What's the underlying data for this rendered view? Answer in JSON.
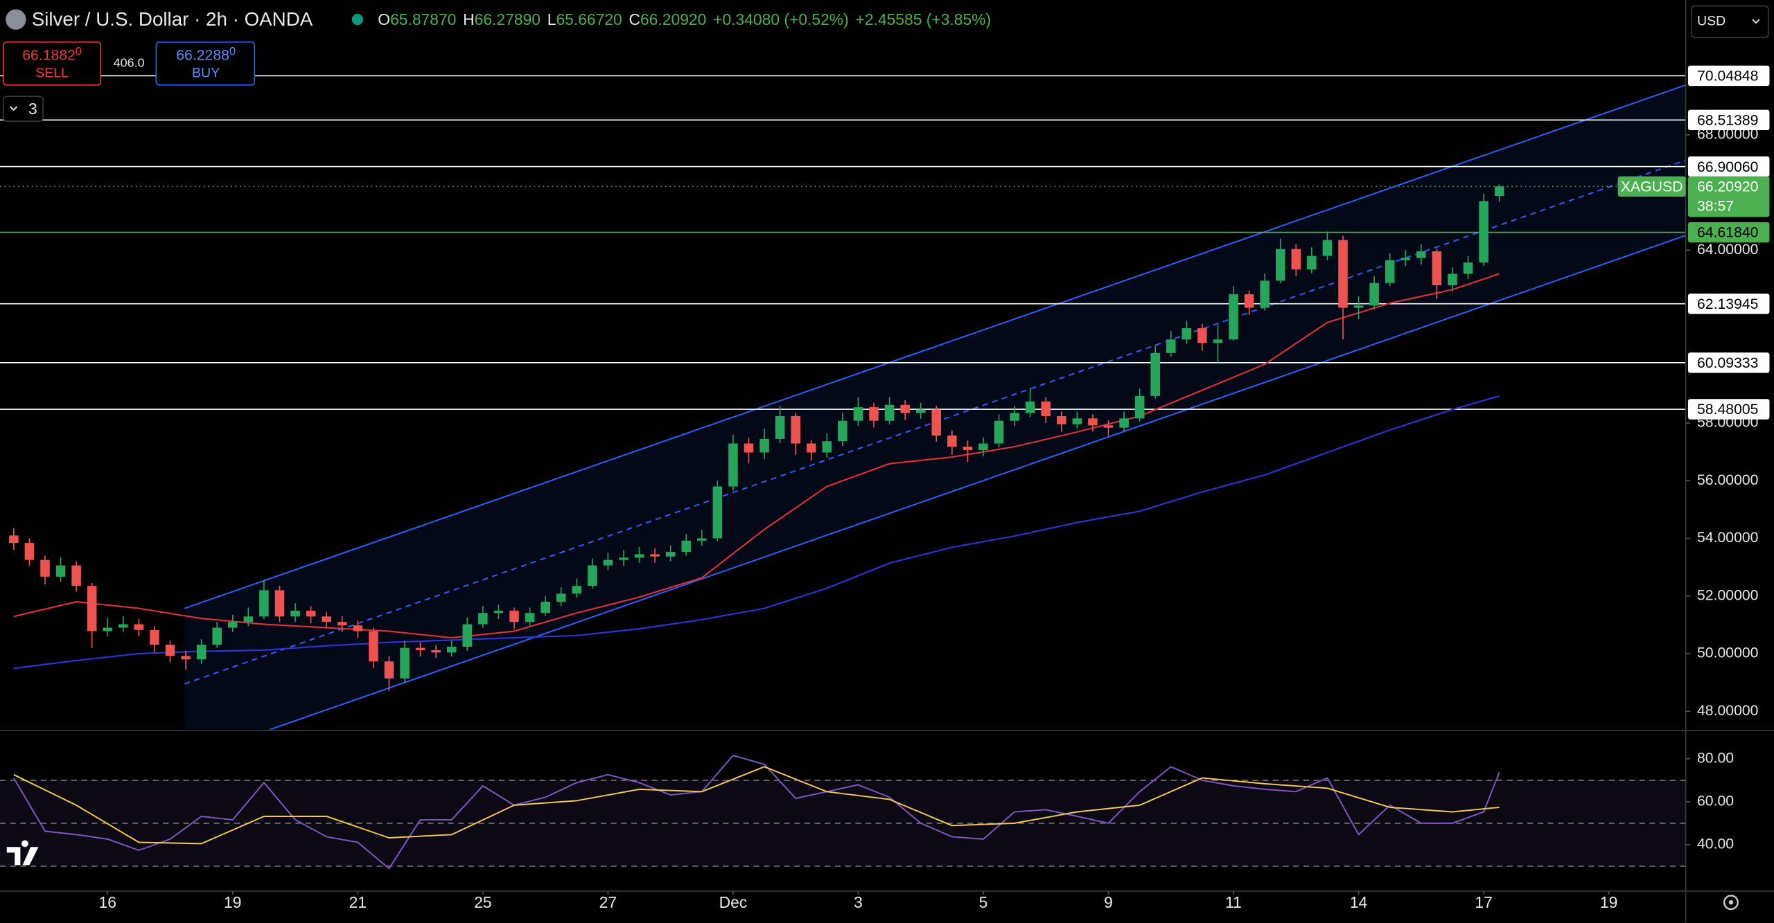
{
  "header": {
    "symbol": "Silver / U.S. Dollar · 2h · OANDA",
    "ohlc": [
      {
        "key": "O",
        "value": "65.87870"
      },
      {
        "key": "H",
        "value": "66.27890"
      },
      {
        "key": "L",
        "value": "65.66720"
      },
      {
        "key": "C",
        "value": "66.20920"
      }
    ],
    "change": "+0.34080 (+0.52%)",
    "change_total": "+2.45585 (+3.85%)",
    "sell": {
      "price": "66.1882",
      "pip": "0",
      "label": "SELL"
    },
    "spread": "406.0",
    "buy": {
      "price": "66.2288",
      "pip": "0",
      "label": "BUY"
    },
    "indicators_count": "3",
    "currency": "USD"
  },
  "chart_data": {
    "type": "candlestick",
    "xlim": [
      -1.72,
      25.23
    ],
    "ylim": [
      47.37,
      72.67
    ],
    "grid": false,
    "xticks": [
      {
        "value": 0,
        "label": "16"
      },
      {
        "value": 2,
        "label": "19"
      },
      {
        "value": 4,
        "label": "21"
      },
      {
        "value": 6,
        "label": "25"
      },
      {
        "value": 8,
        "label": "27"
      },
      {
        "value": 10,
        "label": "Dec"
      },
      {
        "value": 12,
        "label": "3"
      },
      {
        "value": 14,
        "label": "5"
      },
      {
        "value": 16,
        "label": "9"
      },
      {
        "value": 18,
        "label": "11"
      },
      {
        "value": 20,
        "label": "14"
      },
      {
        "value": 22,
        "label": "17"
      },
      {
        "value": 24,
        "label": "19"
      }
    ],
    "yticks": [
      {
        "value": 48,
        "label": "48.00000"
      },
      {
        "value": 50,
        "label": "50.00000"
      },
      {
        "value": 52,
        "label": "52.00000"
      },
      {
        "value": 54,
        "label": "54.00000"
      },
      {
        "value": 56,
        "label": "56.00000"
      },
      {
        "value": 58,
        "label": "58.00000"
      },
      {
        "value": 64,
        "label": "64.00000"
      },
      {
        "value": 68,
        "label": "68.00000"
      }
    ],
    "candles": {
      "up_color": "#26a65b",
      "down_color": "#ef5350",
      "x": [
        -1.5,
        -1.25,
        -1,
        -0.75,
        -0.5,
        -0.25,
        0,
        0.25,
        0.5,
        0.75,
        1,
        1.25,
        1.5,
        1.75,
        2,
        2.25,
        2.5,
        2.75,
        3,
        3.25,
        3.5,
        3.75,
        4,
        4.25,
        4.5,
        4.75,
        5,
        5.25,
        5.5,
        5.75,
        6,
        6.25,
        6.5,
        6.75,
        7,
        7.25,
        7.5,
        7.75,
        8,
        8.25,
        8.5,
        8.75,
        9,
        9.25,
        9.5,
        9.75,
        10,
        10.25,
        10.5,
        10.75,
        11,
        11.25,
        11.5,
        11.75,
        12,
        12.25,
        12.5,
        12.75,
        13,
        13.25,
        13.5,
        13.75,
        14,
        14.25,
        14.5,
        14.75,
        15,
        15.25,
        15.5,
        15.75,
        16,
        16.25,
        16.5,
        16.75,
        17,
        17.25,
        17.5,
        17.75,
        18,
        18.25,
        18.5,
        18.75,
        19,
        19.25,
        19.5,
        19.75,
        20,
        20.25,
        20.5,
        20.75,
        21,
        21.25,
        21.5,
        21.75,
        22,
        22.25
      ],
      "open": [
        54.1,
        53.84,
        53.25,
        52.67,
        53.06,
        52.35,
        50.78,
        50.9,
        51.02,
        50.82,
        50.31,
        49.92,
        49.8,
        50.31,
        50.9,
        51.1,
        51.29,
        52.2,
        51.29,
        51.49,
        51.29,
        51.1,
        50.98,
        50.78,
        49.73,
        49.14,
        50.2,
        50.12,
        50.04,
        50.24,
        51.02,
        51.41,
        51.49,
        51.1,
        51.41,
        51.8,
        52.08,
        52.35,
        53.06,
        53.25,
        53.33,
        53.45,
        53.37,
        53.53,
        53.92,
        54,
        55.8,
        57.29,
        56.98,
        57.45,
        58.24,
        57.29,
        56.98,
        57.37,
        58.08,
        58.55,
        58.08,
        58.63,
        58.35,
        58.47,
        57.57,
        57.18,
        57.06,
        57.29,
        58.08,
        58.35,
        58.75,
        58.24,
        57.96,
        58.16,
        57.92,
        57.84,
        58.16,
        58.94,
        60.43,
        60.9,
        61.29,
        60.78,
        60.9,
        62.47,
        62,
        62.94,
        64.04,
        63.33,
        63.8,
        64.35,
        62,
        62.08,
        62.86,
        63.65,
        63.73,
        63.96,
        62.78,
        63.18,
        63.57,
        65.8787
      ],
      "high": [
        54.35,
        54,
        53.4,
        53.35,
        53.2,
        52.45,
        51.25,
        51.3,
        51.2,
        50.95,
        50.45,
        50.1,
        50.5,
        51.1,
        51.35,
        51.6,
        52.55,
        52.35,
        51.75,
        51.65,
        51.45,
        51.3,
        51.15,
        50.9,
        49.9,
        50.45,
        50.4,
        50.3,
        50.45,
        51.25,
        51.65,
        51.7,
        51.6,
        51.6,
        52,
        52.3,
        52.6,
        53.3,
        53.5,
        53.6,
        53.7,
        53.65,
        53.75,
        54.15,
        54.3,
        56,
        57.6,
        57.5,
        57.8,
        58.6,
        58.35,
        57.4,
        57.65,
        58.35,
        58.9,
        58.7,
        58.9,
        58.8,
        58.7,
        58.6,
        57.75,
        57.4,
        57.5,
        58.3,
        58.6,
        59.2,
        58.9,
        58.4,
        58.4,
        58.3,
        58.1,
        58.4,
        59.2,
        60.7,
        61.2,
        61.55,
        61.45,
        61.4,
        62.75,
        62.6,
        63.2,
        64.4,
        64.2,
        64.1,
        64.65,
        64.5,
        62.4,
        63.1,
        63.9,
        64,
        64.2,
        64.05,
        63.4,
        63.8,
        65.95,
        66.2789
      ],
      "low": [
        53.6,
        53.05,
        52.4,
        52.5,
        52.15,
        50.2,
        50.6,
        50.75,
        50.6,
        50.05,
        49.7,
        49.45,
        49.65,
        50.2,
        50.75,
        50.95,
        51.2,
        51.1,
        51.1,
        51.05,
        50.9,
        50.75,
        50.55,
        49.5,
        48.7,
        49,
        49.9,
        49.85,
        49.9,
        50.1,
        50.9,
        51.2,
        50.85,
        50.95,
        51.3,
        51.65,
        51.95,
        52.25,
        52.9,
        53.05,
        53.15,
        53.15,
        53.2,
        53.4,
        53.75,
        53.9,
        55.65,
        56.6,
        56.75,
        57.3,
        56.9,
        56.7,
        56.8,
        57.2,
        57.9,
        57.85,
        57.95,
        58.1,
        58.15,
        57.35,
        56.9,
        56.65,
        56.85,
        57.15,
        57.9,
        58.2,
        58,
        57.7,
        57.8,
        57.7,
        57.55,
        57.7,
        58.05,
        58.85,
        60.3,
        60.75,
        60.5,
        60.1,
        60.85,
        61.75,
        61.9,
        62.85,
        63.1,
        63.2,
        63.65,
        60.9,
        61.6,
        61.95,
        62.75,
        63.45,
        63.5,
        62.3,
        62.55,
        63,
        63.45,
        65.6672
      ],
      "close": [
        53.84,
        53.25,
        52.67,
        53.06,
        52.35,
        50.78,
        50.9,
        51.02,
        50.82,
        50.31,
        49.92,
        49.8,
        50.31,
        50.9,
        51.1,
        51.29,
        52.2,
        51.29,
        51.49,
        51.29,
        51.1,
        50.98,
        50.78,
        49.73,
        49.14,
        50.2,
        50.12,
        50.04,
        50.24,
        51.02,
        51.41,
        51.49,
        51.1,
        51.41,
        51.8,
        52.08,
        52.35,
        53.06,
        53.25,
        53.33,
        53.45,
        53.37,
        53.53,
        53.92,
        54,
        55.8,
        57.29,
        56.98,
        57.45,
        58.24,
        57.29,
        56.98,
        57.37,
        58.08,
        58.55,
        58.08,
        58.63,
        58.35,
        58.47,
        57.57,
        57.18,
        57.06,
        57.29,
        58.08,
        58.35,
        58.75,
        58.24,
        57.96,
        58.16,
        57.92,
        57.84,
        58.16,
        58.94,
        60.43,
        60.9,
        61.29,
        60.78,
        60.9,
        62.47,
        62,
        62.94,
        64.04,
        63.33,
        63.8,
        64.35,
        62,
        62.08,
        62.86,
        63.65,
        63.73,
        63.96,
        62.78,
        63.18,
        63.57,
        65.7,
        66.2092
      ]
    },
    "series": [
      {
        "color": "#e0303a",
        "x": [
          -1.5,
          -0.5,
          0.5,
          1.5,
          2.5,
          3.5,
          4.5,
          5.5,
          6.5,
          7.5,
          8.5,
          9.5,
          10.5,
          11.5,
          12.5,
          13.5,
          14.5,
          15.5,
          16.5,
          17.5,
          18.5,
          19.5,
          20.5,
          21.5,
          22.25
        ],
        "values": [
          51.29,
          51.8,
          51.57,
          51.22,
          51.02,
          50.9,
          50.78,
          50.55,
          50.78,
          51.41,
          51.96,
          52.63,
          54.31,
          55.8,
          56.59,
          56.82,
          57.18,
          57.69,
          58.24,
          59.14,
          60.04,
          61.49,
          62.16,
          62.63,
          63.18
        ]
      },
      {
        "color": "#2b35d8",
        "x": [
          -1.5,
          -0.5,
          0.5,
          1.5,
          2.5,
          3.5,
          4.5,
          5.5,
          6.5,
          7.5,
          8.5,
          9.5,
          10.5,
          11.5,
          12.5,
          13.5,
          14.5,
          15.5,
          16.5,
          17.5,
          18.5,
          19.5,
          20.5,
          21.5,
          22.25
        ],
        "values": [
          49.49,
          49.76,
          50,
          50.08,
          50.12,
          50.27,
          50.39,
          50.47,
          50.55,
          50.63,
          50.86,
          51.18,
          51.57,
          52.27,
          53.14,
          53.69,
          54.08,
          54.55,
          54.94,
          55.61,
          56.2,
          56.98,
          57.76,
          58.47,
          58.94
        ]
      }
    ],
    "channel": {
      "color": "#2962ff",
      "x": [
        1.23,
        25.23
      ],
      "top": [
        51.57,
        69.73
      ],
      "middle": [
        48.95,
        67.12
      ],
      "bottom": [
        46.33,
        64.51
      ]
    },
    "levels": [
      {
        "value": 70.04848,
        "label": "70.04848",
        "color": "#ffffff"
      },
      {
        "value": 68.51389,
        "label": "68.51389",
        "color": "#ffffff"
      },
      {
        "value": 66.9006,
        "label": "66.90060",
        "color": "#ffffff"
      },
      {
        "value": 64.6184,
        "label": "64.61840",
        "color": "#4caf50"
      },
      {
        "value": 62.13945,
        "label": "62.13945",
        "color": "#ffffff"
      },
      {
        "value": 60.09333,
        "label": "60.09333",
        "color": "#ffffff"
      },
      {
        "value": 58.48005,
        "label": "58.48005",
        "color": "#ffffff"
      }
    ],
    "last": {
      "value": 66.2092,
      "label": "66.20920",
      "symbol": "XAGUSD",
      "countdown": "38:57",
      "color": "#4caf50"
    },
    "rsi": {
      "ylim": [
        18.4,
        92.1
      ],
      "yticks": [
        {
          "value": 80,
          "label": "80.00"
        },
        {
          "value": 60,
          "label": "60.00"
        },
        {
          "value": 40,
          "label": "40.00"
        }
      ],
      "bands": [
        70,
        50,
        30
      ],
      "series": [
        {
          "color": "#7e57c2",
          "x": [
            -1.5,
            -1,
            -0.5,
            0,
            0.5,
            1,
            1.5,
            2,
            2.5,
            3,
            3.5,
            4,
            4.5,
            5,
            5.5,
            6,
            6.5,
            7,
            7.5,
            8,
            8.5,
            9,
            9.5,
            10,
            10.5,
            11,
            11.5,
            12,
            12.5,
            13,
            13.5,
            14,
            14.5,
            15,
            15.5,
            16,
            16.5,
            17,
            17.5,
            18,
            18.5,
            19,
            19.5,
            20,
            20.5,
            21,
            21.5,
            22,
            22.25
          ],
          "values": [
            71.1,
            46.3,
            44.7,
            42.6,
            37.4,
            42.6,
            53.2,
            51.6,
            68.9,
            51.6,
            43.7,
            41.1,
            28.9,
            51.6,
            51.6,
            67.4,
            58.4,
            62.1,
            68.9,
            72.6,
            68.9,
            63.2,
            64.7,
            81.6,
            77.4,
            61.6,
            64.7,
            67.9,
            62.1,
            50,
            43.7,
            42.6,
            55.3,
            56.3,
            53.2,
            50,
            64.7,
            76.3,
            70,
            67.4,
            65.8,
            64.7,
            71.1,
            44.7,
            58.4,
            50,
            50,
            55.3,
            73.7
          ]
        },
        {
          "color": "#f2c94c",
          "x": [
            -1.5,
            -0.5,
            0.5,
            1.5,
            2.5,
            3.5,
            4.5,
            5.5,
            6.5,
            7.5,
            8.5,
            9.5,
            10.5,
            11.5,
            12.5,
            13.5,
            14.5,
            15.5,
            16.5,
            17.5,
            18.5,
            19.5,
            20.5,
            21.5,
            22.25
          ],
          "values": [
            72.6,
            58.4,
            41.1,
            40.5,
            53.2,
            53.2,
            43.2,
            44.7,
            58.4,
            60.5,
            65.8,
            64.7,
            76.3,
            64.7,
            61.1,
            48.9,
            50,
            55.3,
            58.4,
            71.1,
            68.4,
            66.3,
            57.4,
            55.3,
            57.4
          ]
        }
      ]
    }
  }
}
